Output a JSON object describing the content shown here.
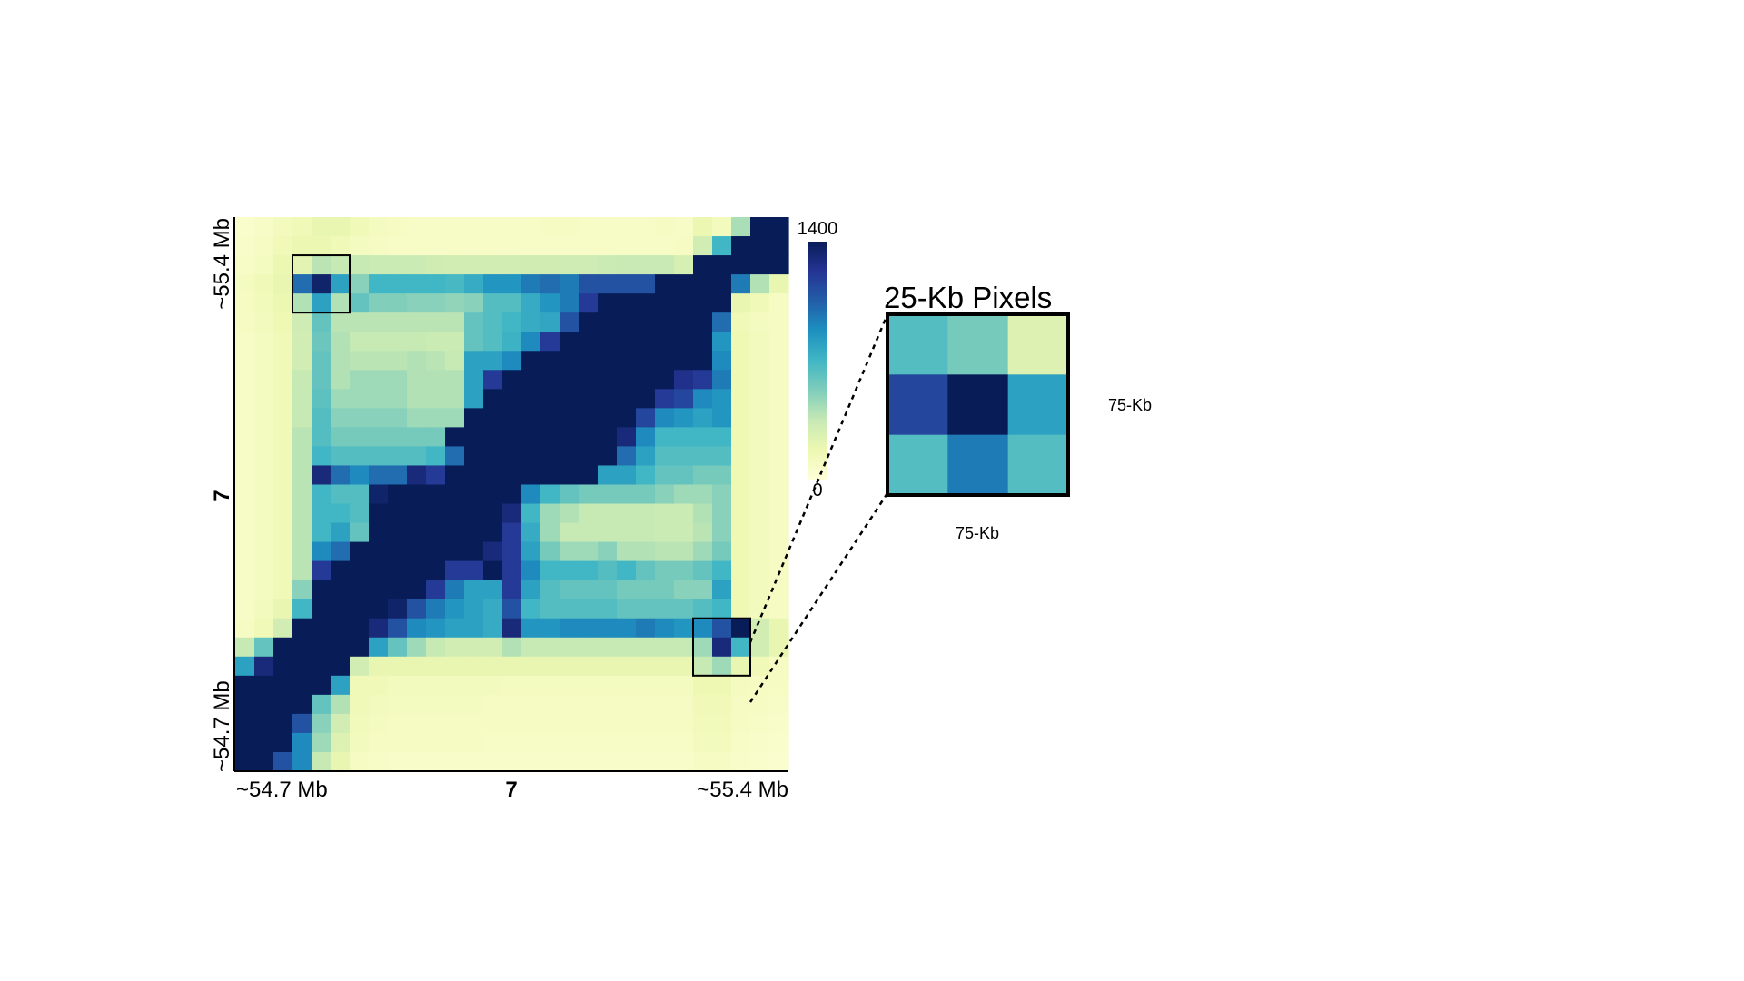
{
  "chart_data": [
    {
      "type": "heatmap",
      "title": "",
      "xlabel": "7",
      "ylabel": "7",
      "x_tick_labels": [
        "~54.7 Mb",
        "~55.4 Mb"
      ],
      "y_tick_labels": [
        "~54.7 Mb",
        "~55.4 Mb"
      ],
      "colorbar": {
        "min": 0,
        "max": 1400,
        "min_label": "0",
        "max_label": "1400",
        "colors": [
          "#ffffd9",
          "#edf8b1",
          "#c7e9b4",
          "#7fcdbb",
          "#41b6c4",
          "#1d91c0",
          "#225ea8",
          "#253494",
          "#081d58"
        ]
      },
      "value_max": 1400,
      "grid": false,
      "matrix": [
        [
          60,
          80,
          120,
          150,
          200,
          200,
          150,
          110,
          90,
          80,
          80,
          80,
          80,
          80,
          80,
          80,
          100,
          100,
          80,
          80,
          80,
          80,
          90,
          80,
          180,
          120,
          420,
          1400,
          1400
        ],
        [
          70,
          100,
          150,
          180,
          180,
          150,
          110,
          90,
          80,
          80,
          80,
          80,
          80,
          80,
          80,
          80,
          80,
          80,
          80,
          80,
          80,
          80,
          80,
          100,
          300,
          700,
          1400,
          1400,
          1400
        ],
        [
          80,
          110,
          180,
          220,
          380,
          350,
          350,
          330,
          330,
          330,
          310,
          300,
          300,
          300,
          300,
          310,
          310,
          320,
          320,
          330,
          340,
          340,
          340,
          280,
          1400,
          1400,
          1400,
          1400,
          1400
        ],
        [
          110,
          150,
          200,
          1000,
          1350,
          800,
          500,
          700,
          700,
          700,
          700,
          680,
          750,
          850,
          850,
          950,
          1000,
          950,
          1100,
          1100,
          1100,
          1100,
          1400,
          1400,
          1400,
          1400,
          950,
          400,
          200
        ],
        [
          100,
          130,
          180,
          400,
          800,
          400,
          600,
          520,
          520,
          500,
          500,
          480,
          500,
          650,
          650,
          750,
          850,
          950,
          1200,
          1400,
          1400,
          1400,
          1400,
          1400,
          1400,
          1400,
          200,
          150,
          100
        ],
        [
          90,
          120,
          160,
          320,
          600,
          380,
          380,
          380,
          380,
          380,
          380,
          380,
          600,
          650,
          700,
          750,
          780,
          1100,
          1400,
          1400,
          1400,
          1400,
          1400,
          1400,
          1400,
          1000,
          150,
          110,
          100
        ],
        [
          80,
          110,
          150,
          300,
          580,
          400,
          350,
          350,
          350,
          350,
          330,
          330,
          600,
          650,
          720,
          900,
          1200,
          1400,
          1400,
          1400,
          1400,
          1400,
          1400,
          1400,
          1400,
          850,
          160,
          120,
          100
        ],
        [
          80,
          110,
          150,
          300,
          600,
          400,
          380,
          380,
          380,
          400,
          380,
          350,
          800,
          800,
          900,
          1400,
          1400,
          1400,
          1400,
          1400,
          1400,
          1400,
          1400,
          1400,
          1400,
          900,
          160,
          120,
          100
        ],
        [
          80,
          110,
          150,
          350,
          600,
          400,
          450,
          450,
          450,
          400,
          400,
          400,
          800,
          1200,
          1400,
          1400,
          1400,
          1400,
          1400,
          1400,
          1400,
          1400,
          1400,
          1250,
          1200,
          950,
          160,
          120,
          100
        ],
        [
          80,
          110,
          150,
          350,
          620,
          450,
          450,
          450,
          450,
          400,
          400,
          400,
          800,
          1400,
          1400,
          1400,
          1400,
          1400,
          1400,
          1400,
          1400,
          1400,
          1200,
          1150,
          900,
          850,
          160,
          120,
          100
        ],
        [
          80,
          110,
          150,
          350,
          650,
          500,
          500,
          500,
          500,
          450,
          450,
          450,
          1400,
          1400,
          1400,
          1400,
          1400,
          1400,
          1400,
          1400,
          1400,
          1150,
          900,
          850,
          800,
          850,
          160,
          120,
          100
        ],
        [
          80,
          110,
          150,
          380,
          650,
          550,
          550,
          550,
          550,
          550,
          550,
          1400,
          1400,
          1400,
          1400,
          1400,
          1400,
          1400,
          1400,
          1400,
          1300,
          900,
          700,
          700,
          700,
          700,
          160,
          120,
          100
        ],
        [
          80,
          110,
          150,
          380,
          700,
          650,
          650,
          650,
          650,
          650,
          700,
          1000,
          1400,
          1400,
          1400,
          1400,
          1400,
          1400,
          1400,
          1400,
          1000,
          800,
          650,
          650,
          650,
          650,
          160,
          120,
          100
        ],
        [
          80,
          110,
          150,
          380,
          1300,
          1000,
          900,
          1000,
          1000,
          1300,
          1200,
          1400,
          1400,
          1400,
          1400,
          1400,
          1400,
          1400,
          1400,
          800,
          800,
          700,
          600,
          600,
          550,
          550,
          160,
          120,
          100
        ],
        [
          80,
          110,
          150,
          380,
          700,
          650,
          650,
          1350,
          1400,
          1400,
          1400,
          1400,
          1400,
          1400,
          1400,
          900,
          700,
          600,
          550,
          550,
          550,
          550,
          500,
          450,
          450,
          500,
          160,
          120,
          100
        ],
        [
          80,
          110,
          150,
          380,
          700,
          700,
          650,
          1400,
          1400,
          1400,
          1400,
          1400,
          1400,
          1400,
          1300,
          700,
          450,
          400,
          350,
          350,
          350,
          350,
          330,
          330,
          400,
          500,
          160,
          120,
          100
        ],
        [
          80,
          110,
          150,
          380,
          700,
          800,
          600,
          1400,
          1400,
          1400,
          1400,
          1400,
          1400,
          1400,
          1200,
          750,
          450,
          350,
          350,
          350,
          350,
          350,
          330,
          330,
          380,
          500,
          160,
          120,
          100
        ],
        [
          80,
          110,
          150,
          380,
          900,
          1000,
          1400,
          1400,
          1400,
          1400,
          1400,
          1400,
          1400,
          1300,
          1200,
          800,
          550,
          450,
          450,
          500,
          400,
          400,
          380,
          380,
          450,
          550,
          160,
          120,
          100
        ],
        [
          80,
          110,
          150,
          380,
          1200,
          1400,
          1400,
          1400,
          1400,
          1400,
          1400,
          1200,
          1200,
          1400,
          1200,
          900,
          700,
          700,
          700,
          650,
          700,
          600,
          550,
          550,
          600,
          700,
          160,
          120,
          100
        ],
        [
          80,
          110,
          150,
          500,
          1400,
          1400,
          1400,
          1400,
          1400,
          1400,
          1200,
          950,
          800,
          800,
          1200,
          800,
          650,
          600,
          600,
          600,
          550,
          550,
          550,
          500,
          500,
          800,
          160,
          120,
          100
        ],
        [
          80,
          120,
          200,
          700,
          1400,
          1400,
          1400,
          1400,
          1350,
          1100,
          950,
          850,
          800,
          750,
          1100,
          700,
          650,
          650,
          650,
          650,
          600,
          600,
          600,
          600,
          650,
          700,
          160,
          120,
          100
        ],
        [
          100,
          150,
          300,
          1400,
          1400,
          1400,
          1400,
          1300,
          1100,
          900,
          850,
          800,
          800,
          750,
          1300,
          850,
          850,
          900,
          900,
          900,
          900,
          950,
          900,
          850,
          900,
          1100,
          1400,
          300,
          200
        ],
        [
          350,
          600,
          1400,
          1400,
          1400,
          1400,
          1400,
          800,
          600,
          450,
          350,
          300,
          300,
          300,
          400,
          350,
          350,
          350,
          350,
          350,
          350,
          350,
          350,
          350,
          450,
          1300,
          700,
          300,
          200
        ],
        [
          800,
          1300,
          1400,
          1400,
          1400,
          1400,
          300,
          200,
          200,
          200,
          200,
          200,
          200,
          200,
          200,
          200,
          200,
          200,
          200,
          200,
          200,
          200,
          200,
          200,
          350,
          450,
          200,
          150,
          100
        ],
        [
          1400,
          1400,
          1400,
          1400,
          1400,
          800,
          150,
          150,
          120,
          120,
          120,
          120,
          120,
          120,
          110,
          110,
          110,
          110,
          110,
          110,
          110,
          110,
          110,
          110,
          170,
          170,
          110,
          100,
          90
        ],
        [
          1400,
          1400,
          1400,
          1400,
          600,
          400,
          150,
          120,
          110,
          110,
          110,
          110,
          110,
          100,
          100,
          100,
          100,
          100,
          100,
          100,
          100,
          100,
          100,
          100,
          150,
          150,
          100,
          90,
          80
        ],
        [
          1400,
          1400,
          1400,
          1100,
          500,
          300,
          130,
          110,
          100,
          100,
          100,
          100,
          100,
          90,
          90,
          90,
          90,
          90,
          90,
          90,
          90,
          90,
          90,
          90,
          130,
          130,
          90,
          80,
          70
        ],
        [
          1400,
          1400,
          1400,
          900,
          450,
          250,
          120,
          100,
          90,
          90,
          90,
          90,
          90,
          80,
          80,
          80,
          80,
          80,
          80,
          80,
          80,
          80,
          80,
          80,
          120,
          120,
          80,
          70,
          60
        ],
        [
          1400,
          1400,
          1100,
          900,
          350,
          200,
          100,
          80,
          70,
          70,
          70,
          70,
          70,
          70,
          70,
          70,
          70,
          70,
          70,
          70,
          70,
          70,
          70,
          70,
          100,
          100,
          70,
          60,
          50
        ]
      ],
      "highlight_boxes": [
        {
          "rows": [
            2,
            4
          ],
          "cols": [
            3,
            5
          ]
        },
        {
          "rows": [
            21,
            23
          ],
          "cols": [
            24,
            26
          ]
        }
      ]
    },
    {
      "type": "heatmap",
      "title": "25-Kb Pixels",
      "xlabel": "75-Kb",
      "ylabel": "75-Kb",
      "matrix": [
        [
          650,
          550,
          250
        ],
        [
          1150,
          1400,
          800
        ],
        [
          650,
          950,
          650
        ]
      ]
    }
  ]
}
